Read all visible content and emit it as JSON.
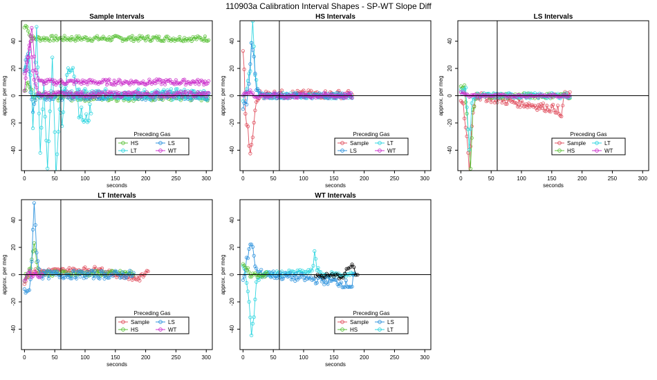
{
  "figure": {
    "title": "110903a   Calibration Interval Shapes - SP-WT Slope Diff"
  },
  "colors": {
    "Sample": "#e0505f",
    "HS": "#5cc23a",
    "LS": "#2f93dd",
    "LT": "#2fd6e0",
    "WT": "#cc33cc",
    "black": "#000000"
  },
  "chart_data": [
    {
      "type": "line",
      "id": "sample",
      "title": "Sample Intervals",
      "xlabel": "seconds",
      "ylabel": "approx. per meg",
      "xlim": [
        -5,
        310
      ],
      "ylim": [
        -55,
        55
      ],
      "xticks": [
        0,
        50,
        100,
        150,
        200,
        250,
        300
      ],
      "yticks": [
        -40,
        -20,
        0,
        20,
        40
      ],
      "vline": 60,
      "hline": 0,
      "legend": {
        "title": "Preceding Gas",
        "entries": [
          "HS",
          "LS",
          "LT",
          "WT"
        ],
        "layout": "2x2"
      },
      "series": [
        {
          "name": "HS",
          "kind": "flat",
          "start": 0,
          "end": 305,
          "step": 2,
          "level": 42,
          "noise": 2,
          "spike": [
            [
              0,
              50
            ],
            [
              4,
              52
            ],
            [
              8,
              45
            ],
            [
              12,
              42
            ]
          ]
        },
        {
          "name": "HS",
          "kind": "flat",
          "start": 0,
          "end": 305,
          "step": 2,
          "level": -1,
          "noise": 3,
          "spike": [
            [
              0,
              5
            ],
            [
              6,
              10
            ],
            [
              12,
              2
            ]
          ]
        },
        {
          "name": "LS",
          "kind": "flat",
          "start": 0,
          "end": 305,
          "step": 2,
          "level": 0,
          "noise": 3,
          "spike": [
            [
              0,
              20
            ],
            [
              6,
              30
            ],
            [
              10,
              5
            ],
            [
              14,
              -10
            ],
            [
              20,
              2
            ]
          ]
        },
        {
          "name": "LT",
          "kind": "flat",
          "start": 0,
          "end": 305,
          "step": 2,
          "level": 1,
          "noise": 4,
          "spike": [
            [
              0,
              15
            ],
            [
              8,
              35
            ],
            [
              14,
              -20
            ],
            [
              20,
              50
            ],
            [
              26,
              -40
            ],
            [
              32,
              10
            ],
            [
              38,
              -55
            ],
            [
              46,
              25
            ],
            [
              52,
              -55
            ],
            [
              60,
              5
            ]
          ]
        },
        {
          "name": "LT",
          "kind": "flat",
          "start": 60,
          "end": 110,
          "step": 2,
          "level": -8,
          "noise": 6,
          "spike": [
            [
              62,
              -20
            ],
            [
              70,
              15
            ],
            [
              80,
              25
            ],
            [
              90,
              -10
            ],
            [
              100,
              -20
            ],
            [
              108,
              -12
            ]
          ]
        },
        {
          "name": "WT",
          "kind": "flat",
          "start": 0,
          "end": 305,
          "step": 2,
          "level": 10,
          "noise": 2,
          "spike": [
            [
              0,
              15
            ],
            [
              6,
              30
            ],
            [
              12,
              50
            ],
            [
              18,
              20
            ],
            [
              24,
              10
            ]
          ]
        },
        {
          "name": "WT",
          "kind": "flat",
          "start": 0,
          "end": 305,
          "step": 2,
          "level": 1,
          "noise": 2,
          "spike": [
            [
              0,
              5
            ],
            [
              10,
              40
            ],
            [
              16,
              10
            ],
            [
              22,
              2
            ]
          ]
        }
      ]
    },
    {
      "type": "line",
      "id": "hs",
      "title": "HS Intervals",
      "xlabel": "seconds",
      "ylabel": "approx. per meg",
      "xlim": [
        -5,
        310
      ],
      "ylim": [
        -55,
        55
      ],
      "xticks": [
        0,
        50,
        100,
        150,
        200,
        250,
        300
      ],
      "yticks": [
        -40,
        -20,
        0,
        20,
        40
      ],
      "vline": 60,
      "hline": 0,
      "legend": {
        "title": "Preceding Gas",
        "entries": [
          "Sample",
          "LT",
          "LS",
          "WT"
        ],
        "layout": "2x2"
      },
      "series": [
        {
          "name": "Sample",
          "kind": "flat",
          "start": 0,
          "end": 180,
          "step": 2,
          "level": 1,
          "noise": 3,
          "spike": [
            [
              0,
              35
            ],
            [
              2,
              20
            ],
            [
              4,
              -15
            ],
            [
              8,
              -25
            ],
            [
              12,
              -45
            ],
            [
              16,
              -30
            ],
            [
              20,
              -10
            ],
            [
              26,
              0
            ]
          ]
        },
        {
          "name": "LT",
          "kind": "flat",
          "start": 0,
          "end": 180,
          "step": 2,
          "level": 0,
          "noise": 2,
          "spike": [
            [
              0,
              -5
            ],
            [
              6,
              5
            ],
            [
              12,
              20
            ],
            [
              16,
              55
            ],
            [
              20,
              15
            ],
            [
              26,
              0
            ]
          ]
        },
        {
          "name": "LS",
          "kind": "flat",
          "start": 0,
          "end": 180,
          "step": 2,
          "level": 0,
          "noise": 2,
          "spike": [
            [
              0,
              -8
            ],
            [
              6,
              -5
            ],
            [
              10,
              10
            ],
            [
              14,
              40
            ],
            [
              18,
              30
            ],
            [
              22,
              5
            ],
            [
              28,
              0
            ]
          ]
        },
        {
          "name": "WT",
          "kind": "flat",
          "start": 0,
          "end": 180,
          "step": 2,
          "level": 0,
          "noise": 2,
          "spike": [
            [
              0,
              2
            ],
            [
              10,
              3
            ],
            [
              16,
              1
            ]
          ]
        }
      ]
    },
    {
      "type": "line",
      "id": "ls",
      "title": "LS Intervals",
      "xlabel": "seconds",
      "ylabel": "approx. per meg",
      "xlim": [
        -5,
        310
      ],
      "ylim": [
        -55,
        55
      ],
      "xticks": [
        0,
        50,
        100,
        150,
        200,
        250,
        300
      ],
      "yticks": [
        -40,
        -20,
        0,
        20,
        40
      ],
      "vline": 60,
      "hline": 0,
      "legend": {
        "title": "Preceding Gas",
        "entries": [
          "Sample",
          "LT",
          "HS",
          "WT"
        ],
        "layout": "2x2"
      },
      "series": [
        {
          "name": "Sample",
          "kind": "flat",
          "start": 0,
          "end": 180,
          "step": 2,
          "level": 0,
          "noise": 3,
          "spike": [
            [
              0,
              -5
            ],
            [
              4,
              -8
            ],
            [
              10,
              -30
            ],
            [
              14,
              -55
            ],
            [
              18,
              -20
            ],
            [
              24,
              0
            ],
            [
              160,
              -10
            ],
            [
              165,
              -18
            ],
            [
              170,
              0
            ]
          ]
        },
        {
          "name": "HS",
          "kind": "flat",
          "start": 0,
          "end": 180,
          "step": 2,
          "level": 0,
          "noise": 2,
          "spike": [
            [
              0,
              5
            ],
            [
              6,
              8
            ],
            [
              12,
              -25
            ],
            [
              16,
              -55
            ],
            [
              20,
              -10
            ],
            [
              26,
              0
            ]
          ]
        },
        {
          "name": "LT",
          "kind": "flat",
          "start": 0,
          "end": 180,
          "step": 2,
          "level": 0,
          "noise": 2,
          "spike": [
            [
              0,
              3
            ],
            [
              8,
              5
            ],
            [
              14,
              -40
            ],
            [
              18,
              -5
            ],
            [
              24,
              0
            ]
          ]
        },
        {
          "name": "WT",
          "kind": "flat",
          "start": 0,
          "end": 180,
          "step": 2,
          "level": 0,
          "noise": 1,
          "spike": [
            [
              0,
              2
            ],
            [
              12,
              1
            ]
          ]
        }
      ]
    },
    {
      "type": "line",
      "id": "lt",
      "title": "LT Intervals",
      "xlabel": "seconds",
      "ylabel": "approx. per meg",
      "xlim": [
        -5,
        310
      ],
      "ylim": [
        -55,
        55
      ],
      "xticks": [
        0,
        50,
        100,
        150,
        200,
        250,
        300
      ],
      "yticks": [
        -40,
        -20,
        0,
        20,
        40
      ],
      "vline": 60,
      "hline": 0,
      "legend": {
        "title": "Preceding Gas",
        "entries": [
          "Sample",
          "LS",
          "HS",
          "WT"
        ],
        "layout": "2x2"
      },
      "series": [
        {
          "name": "Sample",
          "kind": "flat",
          "start": 0,
          "end": 205,
          "step": 2,
          "level": 0,
          "noise": 2,
          "spike": [
            [
              0,
              -5
            ],
            [
              10,
              2
            ],
            [
              120,
              4
            ],
            [
              125,
              6
            ],
            [
              130,
              2
            ],
            [
              190,
              -3
            ],
            [
              200,
              2
            ],
            [
              205,
              3
            ]
          ]
        },
        {
          "name": "HS",
          "kind": "flat",
          "start": 0,
          "end": 180,
          "step": 2,
          "level": 1,
          "noise": 2,
          "spike": [
            [
              0,
              -3
            ],
            [
              10,
              5
            ],
            [
              16,
              25
            ],
            [
              20,
              8
            ],
            [
              26,
              1
            ]
          ]
        },
        {
          "name": "LS",
          "kind": "flat",
          "start": 0,
          "end": 180,
          "step": 2,
          "level": 0,
          "noise": 3,
          "spike": [
            [
              0,
              -10
            ],
            [
              4,
              -15
            ],
            [
              8,
              -12
            ],
            [
              12,
              10
            ],
            [
              16,
              55
            ],
            [
              20,
              15
            ],
            [
              26,
              2
            ]
          ]
        },
        {
          "name": "WT",
          "kind": "flat",
          "start": 0,
          "end": 30,
          "step": 2,
          "level": 0,
          "noise": 2,
          "spike": [
            [
              0,
              -5
            ],
            [
              8,
              2
            ]
          ]
        }
      ]
    },
    {
      "type": "line",
      "id": "wt",
      "title": "WT Intervals",
      "xlabel": "seconds",
      "ylabel": "approx. per meg",
      "xlim": [
        -5,
        310
      ],
      "ylim": [
        -55,
        55
      ],
      "xticks": [
        0,
        50,
        100,
        150,
        200,
        250,
        300
      ],
      "yticks": [
        -40,
        -20,
        0,
        20,
        40
      ],
      "vline": 60,
      "hline": 0,
      "legend": {
        "title": "Preceding Gas",
        "entries": [
          "Sample",
          "LS",
          "HS",
          "LT"
        ],
        "layout": "2x2"
      },
      "series": [
        {
          "name": "LT",
          "kind": "flat",
          "start": 0,
          "end": 185,
          "step": 2,
          "level": 0,
          "noise": 2,
          "spike": [
            [
              0,
              8
            ],
            [
              6,
              -5
            ],
            [
              10,
              -20
            ],
            [
              14,
              -45
            ],
            [
              18,
              -30
            ],
            [
              22,
              -5
            ],
            [
              30,
              0
            ],
            [
              115,
              2
            ],
            [
              118,
              18
            ],
            [
              122,
              5
            ],
            [
              128,
              0
            ]
          ]
        },
        {
          "name": "LS",
          "kind": "flat",
          "start": 0,
          "end": 185,
          "step": 2,
          "level": 0,
          "noise": 3,
          "spike": [
            [
              0,
              -3
            ],
            [
              6,
              10
            ],
            [
              12,
              20
            ],
            [
              16,
              22
            ],
            [
              20,
              5
            ],
            [
              26,
              1
            ],
            [
              150,
              -5
            ],
            [
              180,
              -8
            ]
          ]
        },
        {
          "name": "HS",
          "kind": "flat",
          "start": 0,
          "end": 40,
          "step": 2,
          "level": 0,
          "noise": 2,
          "spike": [
            [
              0,
              6
            ],
            [
              8,
              3
            ]
          ]
        },
        {
          "name": "black",
          "kind": "flat",
          "start": 120,
          "end": 190,
          "step": 3,
          "level": -1,
          "noise": 2,
          "spike": [
            [
              170,
              4
            ],
            [
              180,
              6
            ],
            [
              190,
              -2
            ]
          ]
        }
      ]
    }
  ]
}
